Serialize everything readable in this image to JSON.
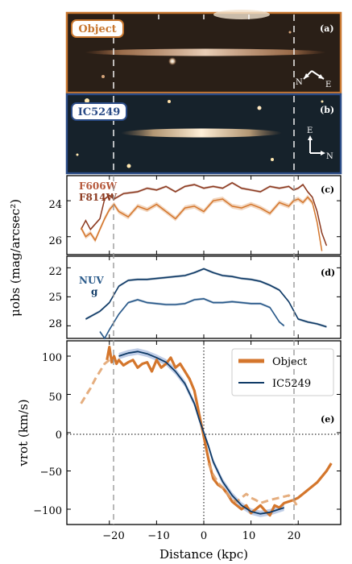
{
  "panels": {
    "a": {
      "tag": "(a)",
      "badge": "Object",
      "compass": {
        "north": "N",
        "east": "E"
      }
    },
    "b": {
      "tag": "(b)",
      "badge": "IC5249",
      "compass": {
        "north": "N",
        "east": "E"
      }
    },
    "c": {
      "tag": "(c)",
      "labels": [
        "F606W",
        "F814W"
      ]
    },
    "d": {
      "tag": "(d)",
      "labels": [
        "NUV",
        "g"
      ]
    },
    "e": {
      "tag": "(e)"
    }
  },
  "axes": {
    "ylabel_shared": "μobs (mag/arcsec²)",
    "ylabel_rot": "vrot (km/s)",
    "xlabel": "Distance (kpc)",
    "xticks": [
      "−20",
      "−10",
      "0",
      "10",
      "20"
    ],
    "c_yticks": [
      "24",
      "26"
    ],
    "d_yticks": [
      "22",
      "25",
      "28"
    ],
    "e_yticks": [
      "100",
      "50",
      "0",
      "−50",
      "−100"
    ]
  },
  "colors": {
    "orange": "#d4762c",
    "orange_light": "#e0a068",
    "dark_red": "#8c3a20",
    "navy": "#0f3a66",
    "blue_band": "#7f9cd0",
    "frame_orange": "#c8772f",
    "frame_blue": "#2a4b86"
  },
  "chart_data": [
    {
      "type": "line",
      "panel": "c",
      "xlabel": "Distance (kpc)",
      "ylabel": "μobs (mag/arcsec²)",
      "xlim": [
        -29,
        29
      ],
      "ylim": [
        27,
        22.6
      ],
      "series": [
        {
          "name": "F606W",
          "color": "#8c3a20",
          "x": [
            -26,
            -25,
            -24,
            -22,
            -21,
            -20,
            -19,
            -17,
            -14,
            -12,
            -10,
            -8,
            -6,
            -4,
            -2,
            0,
            2,
            4,
            6,
            8,
            10,
            12,
            14,
            16,
            18,
            19,
            20,
            21,
            22,
            23,
            24,
            25,
            26
          ],
          "y": [
            25.6,
            25.1,
            25.6,
            25.0,
            23.9,
            23.7,
            23.9,
            23.6,
            23.5,
            23.3,
            23.4,
            23.2,
            23.5,
            23.2,
            23.1,
            23.3,
            23.2,
            23.3,
            23.0,
            23.3,
            23.4,
            23.5,
            23.2,
            23.3,
            23.2,
            23.4,
            23.3,
            23.1,
            23.5,
            23.8,
            24.6,
            25.8,
            26.5
          ]
        },
        {
          "name": "F814W",
          "color": "#d4762c",
          "x": [
            -26,
            -25,
            -24,
            -23,
            -22,
            -21,
            -20,
            -19,
            -18,
            -16,
            -14,
            -12,
            -10,
            -8,
            -6,
            -4,
            -2,
            0,
            2,
            4,
            6,
            8,
            10,
            12,
            14,
            16,
            18,
            19,
            20,
            21,
            22,
            23,
            24,
            25
          ],
          "y": [
            25.5,
            26.0,
            25.8,
            26.2,
            25.6,
            25.0,
            24.5,
            24.2,
            24.6,
            24.9,
            24.3,
            24.5,
            24.2,
            24.6,
            25.0,
            24.4,
            24.3,
            24.6,
            24.0,
            23.9,
            24.3,
            24.4,
            24.2,
            24.4,
            24.7,
            24.1,
            24.3,
            24.0,
            23.9,
            24.1,
            23.8,
            24.1,
            25.2,
            26.8
          ]
        }
      ]
    },
    {
      "type": "line",
      "panel": "d",
      "xlabel": "Distance (kpc)",
      "ylabel": "μobs (mag/arcsec²)",
      "xlim": [
        -29,
        29
      ],
      "ylim": [
        29.3,
        20.8
      ],
      "series": [
        {
          "name": "NUV",
          "color": "#0f3a66",
          "x": [
            -25,
            -22,
            -20,
            -18,
            -16,
            -14,
            -12,
            -10,
            -8,
            -6,
            -4,
            -2,
            0,
            2,
            4,
            6,
            8,
            10,
            12,
            14,
            16,
            18,
            20,
            22,
            24,
            26
          ],
          "y": [
            27.3,
            26.5,
            25.6,
            23.9,
            23.3,
            23.2,
            23.2,
            23.1,
            23.0,
            22.9,
            22.8,
            22.5,
            22.1,
            22.5,
            22.8,
            22.9,
            23.1,
            23.2,
            23.4,
            23.8,
            24.3,
            25.5,
            27.3,
            27.6,
            27.8,
            28.1
          ]
        },
        {
          "name": "g",
          "color": "#2a5a8a",
          "x": [
            -22,
            -21,
            -20,
            -18,
            -16,
            -14,
            -12,
            -10,
            -8,
            -6,
            -4,
            -2,
            0,
            2,
            4,
            6,
            8,
            10,
            12,
            14,
            16,
            17
          ],
          "y": [
            28.6,
            29.3,
            28.4,
            26.8,
            25.6,
            25.3,
            25.6,
            25.7,
            25.8,
            25.8,
            25.7,
            25.3,
            25.2,
            25.6,
            25.6,
            25.5,
            25.6,
            25.7,
            25.7,
            26.1,
            27.6,
            28.0
          ]
        }
      ]
    },
    {
      "type": "line",
      "panel": "e",
      "xlabel": "Distance (kpc)",
      "ylabel": "vrot (km/s)",
      "xlim": [
        -29,
        29
      ],
      "ylim": [
        -120,
        120
      ],
      "series": [
        {
          "name": "Object",
          "color": "#d4762c",
          "x": [
            -20.5,
            -20,
            -19.5,
            -19,
            -18.5,
            -18,
            -17,
            -16,
            -15,
            -14,
            -13,
            -12,
            -11,
            -10,
            -9,
            -8,
            -7,
            -6,
            -5,
            -4,
            -3,
            -2,
            -1.5,
            -1,
            -0.5,
            0,
            0.5,
            1,
            1.5,
            2,
            3,
            4,
            5,
            6,
            7,
            8,
            9,
            10,
            11,
            12,
            13,
            14,
            15,
            16,
            17,
            18,
            19,
            20,
            22,
            24,
            26,
            27
          ],
          "y": [
            95,
            112,
            92,
            100,
            90,
            95,
            88,
            92,
            95,
            85,
            90,
            92,
            80,
            95,
            85,
            90,
            98,
            85,
            90,
            80,
            70,
            55,
            40,
            25,
            10,
            -5,
            -20,
            -35,
            -48,
            -60,
            -68,
            -72,
            -80,
            -90,
            -95,
            -100,
            -95,
            -105,
            -100,
            -95,
            -102,
            -108,
            -95,
            -98,
            -92,
            -90,
            -88,
            -85,
            -75,
            -65,
            -50,
            -40
          ]
        },
        {
          "name": "Object (extension)",
          "color": "#e0a068",
          "x": [
            -26,
            -25,
            -24,
            -23,
            -22,
            -21,
            -20
          ],
          "y": [
            38,
            48,
            58,
            70,
            80,
            90,
            95
          ]
        },
        {
          "name": "Object (extension, right)",
          "color": "#e0a068",
          "x": [
            1,
            2,
            3,
            4,
            5,
            6,
            7,
            8,
            9,
            10,
            11,
            12,
            14,
            16,
            18,
            19,
            20
          ],
          "y": [
            -40,
            -55,
            -65,
            -72,
            -80,
            -88,
            -90,
            -85,
            -80,
            -85,
            -88,
            -92,
            -88,
            -85,
            -82,
            -88,
            -98
          ]
        },
        {
          "name": "IC5249",
          "color": "#0f3a66",
          "x": [
            -18,
            -16,
            -14,
            -12,
            -10,
            -8,
            -6,
            -4,
            -2,
            -1,
            0,
            1,
            2,
            4,
            6,
            8,
            10,
            12,
            14,
            16,
            17
          ],
          "y": [
            100,
            104,
            106,
            103,
            98,
            92,
            80,
            64,
            38,
            18,
            0,
            -18,
            -38,
            -64,
            -82,
            -95,
            -103,
            -106,
            -104,
            -100,
            -98
          ]
        }
      ]
    }
  ]
}
